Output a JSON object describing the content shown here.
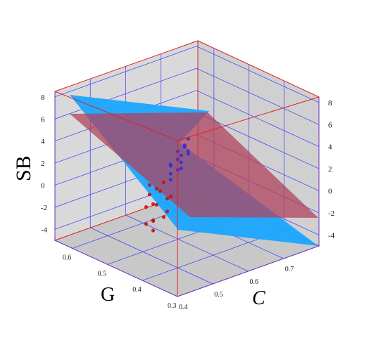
{
  "chart_data": {
    "type": "scatter3d",
    "axes": {
      "x": {
        "label": "C",
        "ticks": [
          "0.4",
          "0.5",
          "0.6",
          "0.7"
        ],
        "range": [
          0.4,
          0.8
        ]
      },
      "y": {
        "label": "G",
        "ticks": [
          "0.3",
          "0.4",
          "0.5",
          "0.6"
        ],
        "range": [
          0.3,
          0.65
        ]
      },
      "z": {
        "label": "SB",
        "ticks": [
          "-4",
          "-2",
          "0",
          "2",
          "4",
          "6",
          "8"
        ],
        "range": [
          -5,
          8.5
        ]
      }
    },
    "planes": [
      {
        "name": "",
        "color": "#1aa7ff"
      },
      {
        "name": "",
        "color": "#b0435d"
      }
    ],
    "series": [
      {
        "name": "",
        "color": "#3b2fd0",
        "points": [
          [
            0.45,
            0.33,
            7.7
          ],
          [
            0.46,
            0.34,
            7.3
          ],
          [
            0.47,
            0.35,
            7.1
          ],
          [
            0.44,
            0.33,
            6.9
          ],
          [
            0.46,
            0.36,
            6.6
          ],
          [
            0.48,
            0.35,
            6.3
          ],
          [
            0.45,
            0.34,
            6.0
          ],
          [
            0.47,
            0.37,
            5.6
          ],
          [
            0.46,
            0.35,
            5.2
          ],
          [
            0.44,
            0.36,
            4.8
          ],
          [
            0.48,
            0.38,
            4.4
          ],
          [
            0.45,
            0.37,
            4.0
          ],
          [
            0.47,
            0.34,
            6.8
          ],
          [
            0.49,
            0.36,
            7.4
          ],
          [
            0.43,
            0.35,
            5.9
          ],
          [
            0.46,
            0.38,
            5.0
          ]
        ]
      },
      {
        "name": "",
        "color": "#c41212",
        "points": [
          [
            0.46,
            0.4,
            3.2
          ],
          [
            0.45,
            0.41,
            2.6
          ],
          [
            0.47,
            0.42,
            2.0
          ],
          [
            0.44,
            0.4,
            1.4
          ],
          [
            0.46,
            0.43,
            0.8
          ],
          [
            0.48,
            0.41,
            0.2
          ],
          [
            0.45,
            0.42,
            -0.4
          ],
          [
            0.47,
            0.44,
            -1.0
          ],
          [
            0.46,
            0.43,
            -1.6
          ],
          [
            0.44,
            0.42,
            2.9
          ],
          [
            0.48,
            0.4,
            1.7
          ],
          [
            0.45,
            0.44,
            0.5
          ],
          [
            0.47,
            0.41,
            -0.2
          ],
          [
            0.46,
            0.45,
            -1.3
          ],
          [
            0.49,
            0.42,
            1.1
          ],
          [
            0.43,
            0.41,
            2.3
          ]
        ]
      }
    ]
  }
}
